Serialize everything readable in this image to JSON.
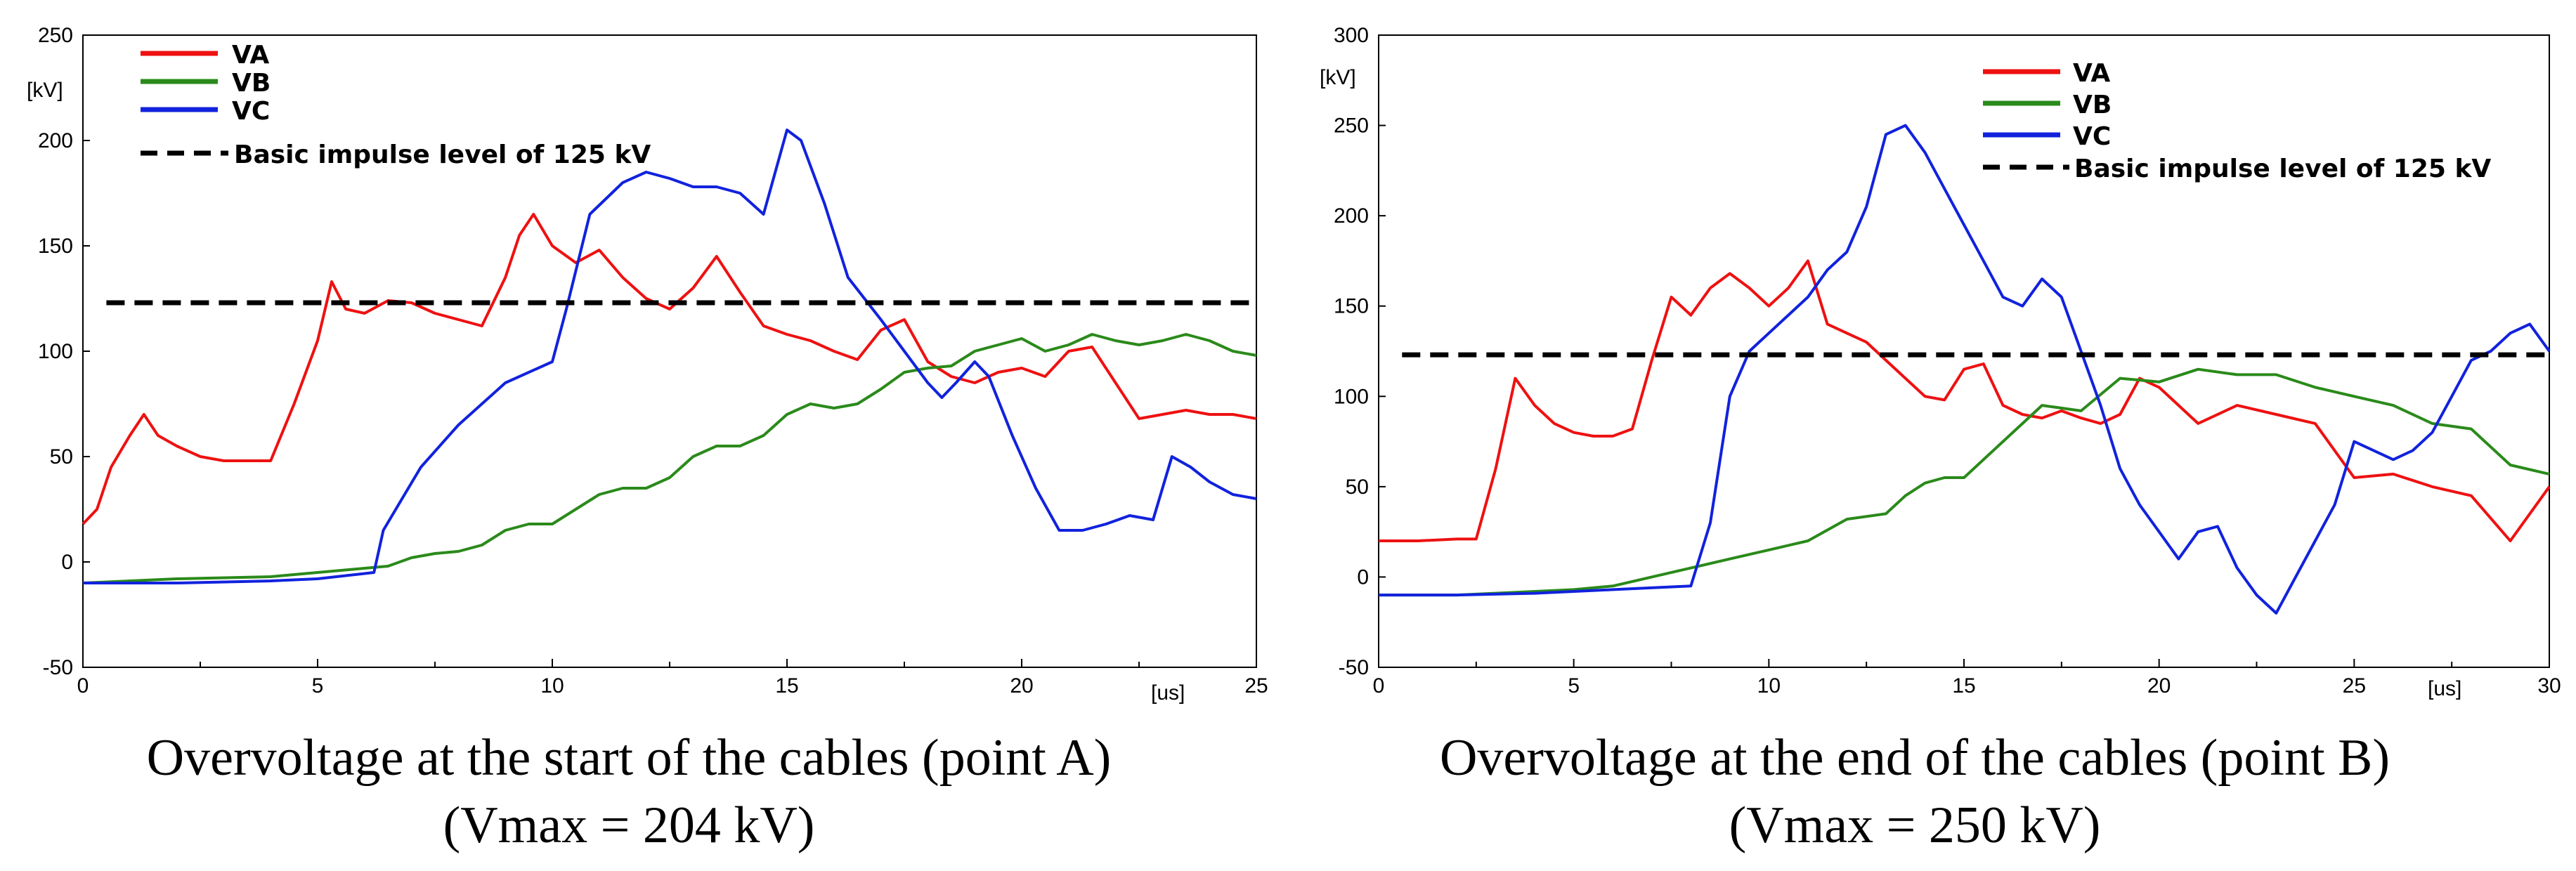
{
  "charts": [
    {
      "caption_line1": "Overvoltage at the start of the cables (point A)",
      "caption_line2": "(Vmax = 204 kV)",
      "ylabel": "[kV]",
      "xlabel": "[us]",
      "legend": [
        "VA",
        "VB",
        "VC",
        "Basic impulse level of 125 kV"
      ]
    },
    {
      "caption_line1": "Overvoltage at the end of the cables (point B)",
      "caption_line2": "(Vmax = 250 kV)",
      "ylabel": "[kV]",
      "xlabel": "[us]",
      "legend": [
        "VA",
        "VB",
        "VC",
        "Basic impulse level of 125 kV"
      ]
    }
  ],
  "colors": {
    "VA": "#ee1111",
    "VB": "#2a8a1a",
    "VC": "#1122dd",
    "bil": "#000000"
  },
  "chart_data": [
    {
      "type": "line",
      "title": "Overvoltage at the start of the cables (point A) (Vmax = 204 kV)",
      "xlabel": "[us]",
      "ylabel": "[kV]",
      "xlim": [
        0,
        25
      ],
      "ylim": [
        -50,
        250
      ],
      "xticks": [
        0,
        5,
        10,
        15,
        20,
        25
      ],
      "yticks": [
        -50,
        0,
        50,
        100,
        150,
        200,
        250
      ],
      "legend_position": "top-left",
      "series": [
        {
          "name": "VA",
          "color": "#ee1111",
          "x": [
            0,
            0.3,
            0.6,
            1.0,
            1.3,
            1.6,
            2.0,
            2.5,
            3.0,
            4.0,
            4.5,
            5.0,
            5.3,
            5.6,
            6.0,
            6.5,
            7.0,
            7.5,
            8.0,
            8.5,
            9.0,
            9.3,
            9.6,
            10.0,
            10.5,
            11.0,
            11.5,
            12.0,
            12.5,
            13.0,
            13.5,
            14.0,
            14.5,
            15.0,
            15.5,
            16.0,
            16.5,
            17.0,
            17.5,
            18.0,
            18.5,
            19.0,
            19.5,
            20.0,
            20.5,
            21.0,
            21.5,
            22.0,
            22.5,
            23.0,
            23.5,
            24.0,
            24.5,
            25.0
          ],
          "values": [
            18,
            25,
            45,
            60,
            70,
            60,
            55,
            50,
            48,
            48,
            75,
            105,
            133,
            120,
            118,
            124,
            123,
            118,
            115,
            112,
            135,
            155,
            165,
            150,
            142,
            148,
            135,
            125,
            120,
            130,
            145,
            128,
            112,
            108,
            105,
            100,
            96,
            110,
            115,
            95,
            88,
            85,
            90,
            92,
            88,
            100,
            102,
            85,
            68,
            70,
            72,
            70,
            70,
            68
          ]
        },
        {
          "name": "VB",
          "color": "#2a8a1a",
          "x": [
            0,
            2,
            4,
            5,
            6,
            6.5,
            7,
            7.5,
            8,
            8.5,
            9,
            9.5,
            10,
            10.5,
            11,
            11.5,
            12,
            12.5,
            13,
            13.5,
            14,
            14.5,
            15,
            15.5,
            16,
            16.5,
            17,
            17.5,
            18,
            18.5,
            19,
            19.5,
            20,
            20.5,
            21,
            21.5,
            22,
            22.5,
            23,
            23.5,
            24,
            24.5,
            25
          ],
          "values": [
            -10,
            -8,
            -7,
            -5,
            -3,
            -2,
            2,
            4,
            5,
            8,
            15,
            18,
            18,
            25,
            32,
            35,
            35,
            40,
            50,
            55,
            55,
            60,
            70,
            75,
            73,
            75,
            82,
            90,
            92,
            93,
            100,
            103,
            106,
            100,
            103,
            108,
            105,
            103,
            105,
            108,
            105,
            100,
            98
          ]
        },
        {
          "name": "VC",
          "color": "#1122dd",
          "x": [
            0,
            2,
            4,
            5,
            6.2,
            6.4,
            6.8,
            7.2,
            8,
            9,
            10,
            10.3,
            10.8,
            11.5,
            12,
            12.5,
            13,
            13.5,
            14,
            14.5,
            15,
            15.3,
            15.8,
            16.3,
            17,
            17.5,
            18,
            18.3,
            18.6,
            19,
            19.3,
            19.8,
            20.3,
            20.8,
            21.3,
            21.8,
            22.3,
            22.8,
            23.2,
            23.6,
            24,
            24.5,
            25
          ],
          "values": [
            -10,
            -10,
            -9,
            -8,
            -5,
            15,
            30,
            45,
            65,
            85,
            95,
            120,
            165,
            180,
            185,
            182,
            178,
            178,
            175,
            165,
            205,
            200,
            170,
            135,
            115,
            100,
            85,
            78,
            85,
            95,
            88,
            60,
            35,
            15,
            15,
            18,
            22,
            20,
            50,
            45,
            38,
            32,
            30
          ]
        },
        {
          "name": "Basic impulse level of 125 kV",
          "color": "#000000",
          "dashed": true,
          "x": [
            0.5,
            25
          ],
          "values": [
            123,
            123
          ]
        }
      ]
    },
    {
      "type": "line",
      "title": "Overvoltage at the end of the cables (point B) (Vmax = 250 kV)",
      "xlabel": "[us]",
      "ylabel": "[kV]",
      "xlim": [
        0,
        30
      ],
      "ylim": [
        -50,
        300
      ],
      "xticks": [
        0,
        5,
        10,
        15,
        20,
        25,
        30
      ],
      "yticks": [
        -50,
        0,
        50,
        100,
        150,
        200,
        250,
        300
      ],
      "legend_position": "top-center",
      "series": [
        {
          "name": "VA",
          "color": "#ee1111",
          "x": [
            0,
            1,
            2,
            2.5,
            3,
            3.5,
            4,
            4.5,
            5,
            5.5,
            6,
            6.5,
            7,
            7.5,
            8,
            8.5,
            9,
            9.5,
            10,
            10.5,
            11,
            11.5,
            12,
            12.5,
            13,
            13.5,
            14,
            14.5,
            15,
            15.5,
            16,
            16.5,
            17,
            17.5,
            18,
            18.5,
            19,
            19.5,
            20,
            21,
            22,
            23,
            24,
            25,
            26,
            27,
            28,
            29,
            30
          ],
          "values": [
            20,
            20,
            21,
            21,
            60,
            110,
            95,
            85,
            80,
            78,
            78,
            82,
            120,
            155,
            145,
            160,
            168,
            160,
            150,
            160,
            175,
            140,
            135,
            130,
            120,
            110,
            100,
            98,
            115,
            118,
            95,
            90,
            88,
            92,
            88,
            85,
            90,
            110,
            105,
            85,
            95,
            90,
            85,
            55,
            57,
            50,
            45,
            20,
            50
          ]
        },
        {
          "name": "VB",
          "color": "#2a8a1a",
          "x": [
            0,
            2,
            4,
            5,
            6,
            7,
            8,
            9,
            10,
            11,
            12,
            13,
            13.5,
            14,
            14.5,
            15,
            16,
            17,
            18,
            19,
            20,
            21,
            22,
            23,
            24,
            25,
            26,
            27,
            28,
            29,
            30
          ],
          "values": [
            -10,
            -10,
            -8,
            -7,
            -5,
            0,
            5,
            10,
            15,
            20,
            32,
            35,
            45,
            52,
            55,
            55,
            75,
            95,
            92,
            110,
            108,
            115,
            112,
            112,
            105,
            100,
            95,
            85,
            82,
            62,
            57
          ]
        },
        {
          "name": "VC",
          "color": "#1122dd",
          "x": [
            0,
            2,
            4,
            6,
            8,
            8.5,
            9,
            9.5,
            10,
            10.5,
            11,
            11.5,
            12,
            12.5,
            13,
            13.5,
            14,
            14.5,
            15,
            15.5,
            16,
            16.5,
            17,
            17.5,
            18,
            18.5,
            19,
            19.5,
            20,
            20.5,
            21,
            21.5,
            22,
            22.5,
            23,
            23.5,
            24,
            24.5,
            25,
            25.5,
            26,
            26.5,
            27,
            27.5,
            28,
            28.5,
            29,
            29.5,
            30
          ],
          "values": [
            -10,
            -10,
            -9,
            -7,
            -5,
            30,
            100,
            125,
            135,
            145,
            155,
            170,
            180,
            205,
            245,
            250,
            235,
            215,
            195,
            175,
            155,
            150,
            165,
            155,
            125,
            95,
            60,
            40,
            25,
            10,
            25,
            28,
            5,
            -10,
            -20,
            0,
            20,
            40,
            75,
            70,
            65,
            70,
            80,
            100,
            120,
            125,
            135,
            140,
            125
          ]
        },
        {
          "name": "Basic impulse level of 125 kV",
          "color": "#000000",
          "dashed": true,
          "x": [
            0.6,
            30
          ],
          "values": [
            123,
            123
          ]
        }
      ]
    }
  ]
}
